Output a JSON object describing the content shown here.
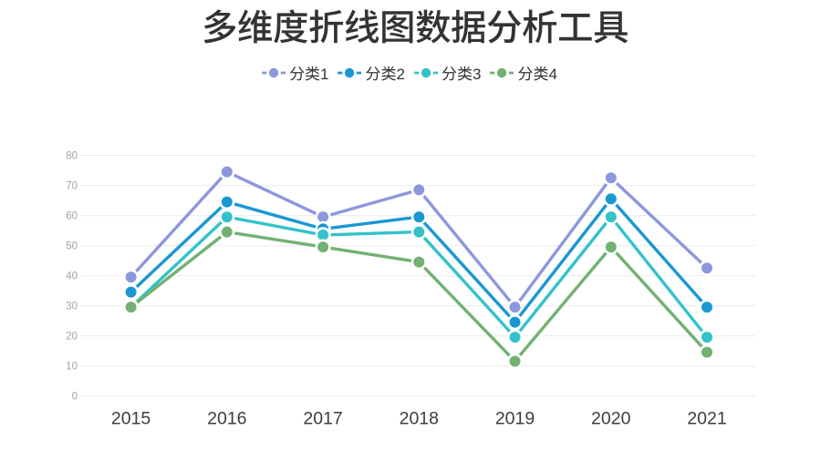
{
  "page": {
    "background": "#ffffff"
  },
  "chart_data": {
    "type": "line",
    "title": "多维度折线图数据分析工具",
    "categories": [
      "2015",
      "2016",
      "2017",
      "2018",
      "2019",
      "2020",
      "2021"
    ],
    "series": [
      {
        "name": "分类1",
        "color": "#8d97de",
        "values": [
          40,
          75,
          60,
          69,
          30,
          73,
          43
        ]
      },
      {
        "name": "分类2",
        "color": "#1b97d3",
        "values": [
          35,
          65,
          56,
          60,
          25,
          66,
          30
        ]
      },
      {
        "name": "分类3",
        "color": "#33c2cb",
        "values": [
          30,
          60,
          54,
          55,
          20,
          60,
          20
        ]
      },
      {
        "name": "分类4",
        "color": "#72b172",
        "values": [
          30,
          55,
          50,
          45,
          12,
          50,
          15
        ]
      }
    ],
    "xlabel": "",
    "ylabel": "",
    "ylim": [
      0,
      80
    ],
    "y_ticks": [
      0,
      10,
      20,
      30,
      40,
      50,
      60,
      70,
      80
    ],
    "grid": true,
    "legend_position": "top-center",
    "legend_marker": "line-dot",
    "colors": {
      "title_text": "#333333",
      "legend_text": "#333333",
      "grid_line": "#ececec",
      "y_tick_text": "#a3a3a3",
      "x_tick_text": "#3d3d3d",
      "background": "#ffffff",
      "point_border": "#ffffff"
    }
  }
}
